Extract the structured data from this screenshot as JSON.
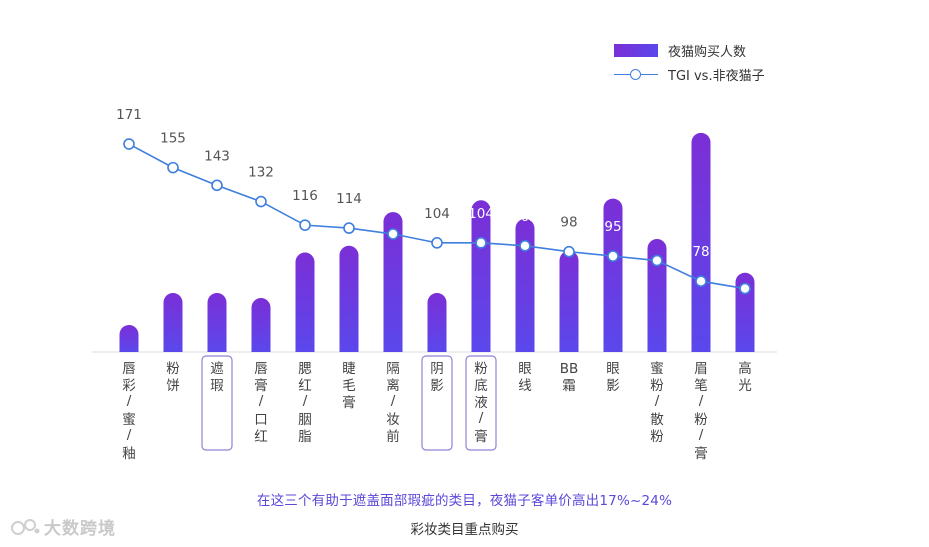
{
  "chart_data": {
    "type": "bar+line",
    "title": "彩妆类目重点购买",
    "categories": [
      "唇彩/蜜/釉",
      "粉饼",
      "遮瑕",
      "唇膏/口红",
      "腮红/胭脂",
      "睫毛膏",
      "隔离/妆前",
      "阴影",
      "粉底液/膏",
      "眼线",
      "BB霜",
      "眼影",
      "蜜粉/散粉",
      "眉笔/粉/膏",
      "高光"
    ],
    "highlighted": [
      "遮瑕",
      "阴影",
      "粉底液/膏"
    ],
    "series": [
      {
        "name": "夜猫购买人数",
        "type": "bar",
        "values": [
          16,
          35,
          35,
          32,
          59,
          63,
          83,
          35,
          90,
          79,
          60,
          91,
          67,
          130,
          47
        ]
      },
      {
        "name": "TGI vs.非夜猫子",
        "type": "line",
        "values": [
          171,
          155,
          143,
          132,
          116,
          114,
          110,
          104,
          104,
          102,
          98,
          95,
          92,
          78,
          73
        ]
      }
    ],
    "bar_ylim": [
      0,
      140
    ],
    "line_ylim": [
      30,
      190
    ],
    "legend_position": "top-right"
  },
  "legend": {
    "bar_label": "夜猫购买人数",
    "line_label": "TGI vs.非夜猫子"
  },
  "note": "在这三个有助于遮盖面部瑕疵的类目，夜猫子客单价高出17%~24%",
  "caption": "彩妆类目重点购买",
  "watermark": "大数跨境",
  "colors": {
    "bar_top": "#7b2fd6",
    "bar_bottom": "#5a48ec",
    "line": "#3f7fde",
    "highlight_box": "#8f84d8",
    "note": "#5a48d8"
  }
}
